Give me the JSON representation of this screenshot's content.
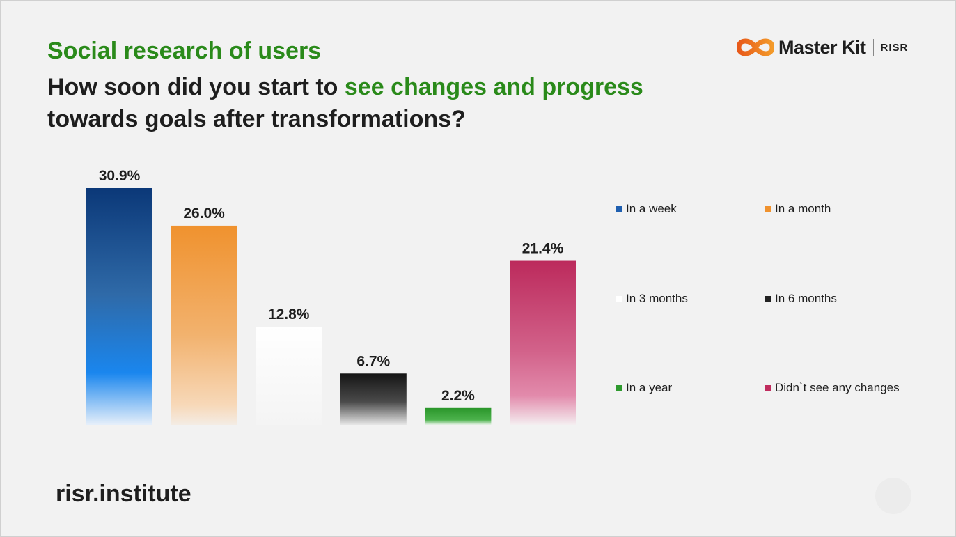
{
  "header": {
    "subtitle": "Social research of users",
    "title_part1": "How soon did you start to ",
    "title_highlight": "see changes and progress",
    "title_part2": "towards goals after transformations?",
    "highlight_color": "#2a8a1a"
  },
  "logo": {
    "brand": "Master Kit",
    "org": "RISR",
    "icon": "infinity-logo-icon"
  },
  "footer": {
    "site": "risr.institute"
  },
  "chart_data": {
    "type": "bar",
    "title": "How soon did you start to see changes and progress towards goals after transformations?",
    "xlabel": "",
    "ylabel": "",
    "ylim": [
      0,
      30.9
    ],
    "unit": "%",
    "grid": false,
    "legend_position": "right",
    "categories": [
      "In a week",
      "In a month",
      "In 3 months",
      "In 6 months",
      "In a year",
      "Didn`t see any changes"
    ],
    "values": [
      30.9,
      26.0,
      12.8,
      6.7,
      2.2,
      21.4
    ],
    "labels": [
      "30.9%",
      "26.0%",
      "12.8%",
      "6.7%",
      "2.2%",
      "21.4%"
    ],
    "colors": [
      "#0d3a78",
      "#f0922e",
      "#ffffff",
      "#1c1c1c",
      "#2e9a2e",
      "#c02c5e"
    ]
  }
}
